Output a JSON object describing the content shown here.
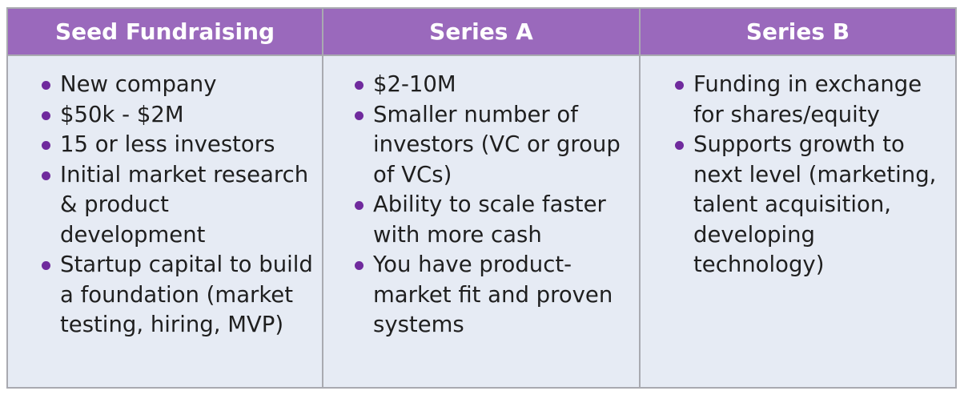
{
  "table": {
    "headers": [
      "Seed Fundraising",
      "Series A",
      "Series B"
    ],
    "columns": [
      [
        "New company",
        "$50k - $2M",
        "15 or less investors",
        "Initial market research & product development",
        "Startup capital to build a foundation (market testing, hiring, MVP)"
      ],
      [
        "$2-10M",
        "Smaller number of investors (VC or group of VCs)",
        "Ability to scale faster with more cash",
        "You have product-market fit and proven systems"
      ],
      [
        "Funding in exchange for shares/equity",
        "Supports growth to next level (marketing, talent acquisition, developing technology)"
      ]
    ]
  },
  "colors": {
    "header_bg": "#9a69bc",
    "cell_bg": "#e6ebf4",
    "bullet": "#6f2a9d",
    "border": "#a9aab0"
  }
}
